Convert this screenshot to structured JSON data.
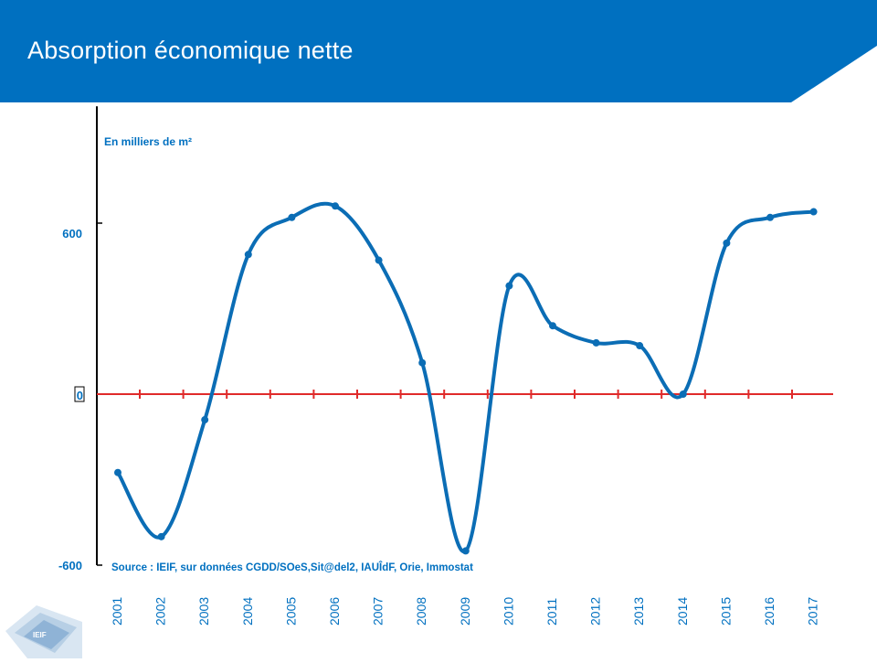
{
  "header": {
    "title": "Absorption économique nette"
  },
  "logo": {
    "text": "IEIF"
  },
  "colors": {
    "header": "#0070C0",
    "line": "#0B6DB5",
    "zero_axis": "#E02A2A",
    "text": "#0070C0"
  },
  "chart_data": {
    "type": "line",
    "title": "Absorption économique nette",
    "unit_label": "En milliers de m²",
    "source": "Source : IEIF, sur données CGDD/SOeS,Sit@del2, IAUÎdF, Orie, Immostat",
    "categories": [
      "2001",
      "2002",
      "2003",
      "2004",
      "2005",
      "2006",
      "2007",
      "2008",
      "2009",
      "2010",
      "2011",
      "2012",
      "2013",
      "2014",
      "2015",
      "2016",
      "2017"
    ],
    "series": [
      {
        "values": [
          -275,
          -500,
          -90,
          490,
          620,
          660,
          470,
          110,
          -550,
          380,
          240,
          180,
          170,
          0,
          530,
          620,
          640
        ]
      }
    ],
    "y_ticks": [
      {
        "value": 600,
        "label": "600"
      },
      {
        "value": 0,
        "label": "0"
      },
      {
        "value": -600,
        "label": "-600"
      }
    ],
    "ylim": [
      -600,
      1010
    ],
    "smooth": true,
    "grid": false
  }
}
